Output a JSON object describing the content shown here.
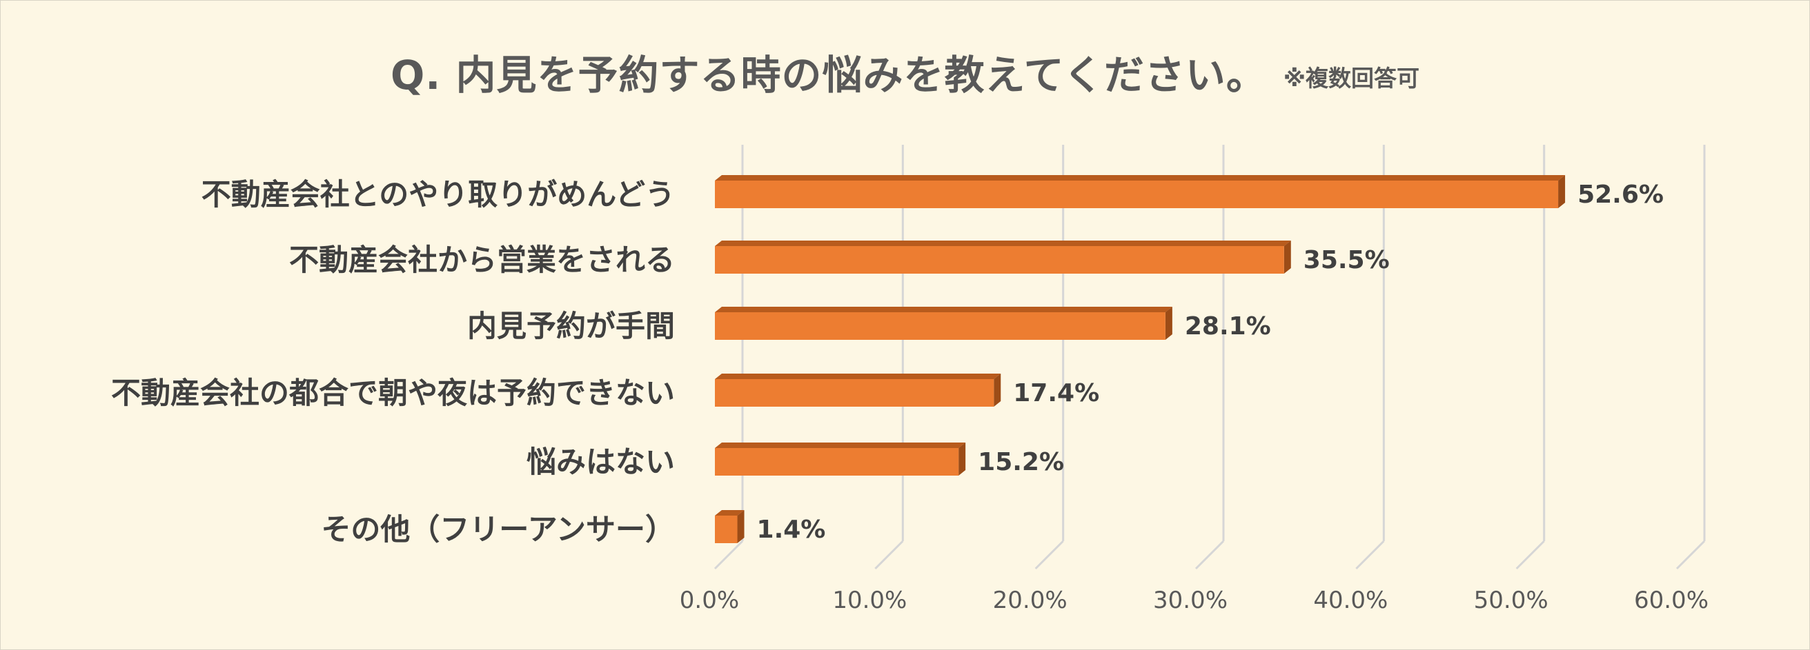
{
  "header": {
    "title": "Q. 内見を予約する時の悩みを教えてください。",
    "note": "※複数回答可"
  },
  "colors": {
    "background": "#fdf7e4",
    "bar_front": "#ed7d31",
    "bar_top": "#b85b1d",
    "bar_side": "#9c4c17",
    "grid": "#d6d6d6",
    "text": "#404040"
  },
  "chart_data": {
    "type": "bar",
    "orientation": "horizontal",
    "style": "3d",
    "title": "Q. 内見を予約する時の悩みを教えてください。",
    "subtitle": "※複数回答可",
    "categories": [
      "不動産会社とのやり取りがめんどう",
      "不動産会社から営業をされる",
      "内見予約が手間",
      "不動産会社の都合で朝や夜は予約できない",
      "悩みはない",
      "その他（フリーアンサー）"
    ],
    "values": [
      52.6,
      35.5,
      28.1,
      17.4,
      15.2,
      1.4
    ],
    "value_labels": [
      "52.6%",
      "35.5%",
      "28.1%",
      "17.4%",
      "15.2%",
      "1.4%"
    ],
    "xlim": [
      0,
      60
    ],
    "xticks": [
      0,
      10,
      20,
      30,
      40,
      50,
      60
    ],
    "xtick_labels": [
      "0.0%",
      "10.0%",
      "20.0%",
      "30.0%",
      "40.0%",
      "50.0%",
      "60.0%"
    ],
    "grid": true,
    "legend": "none"
  }
}
